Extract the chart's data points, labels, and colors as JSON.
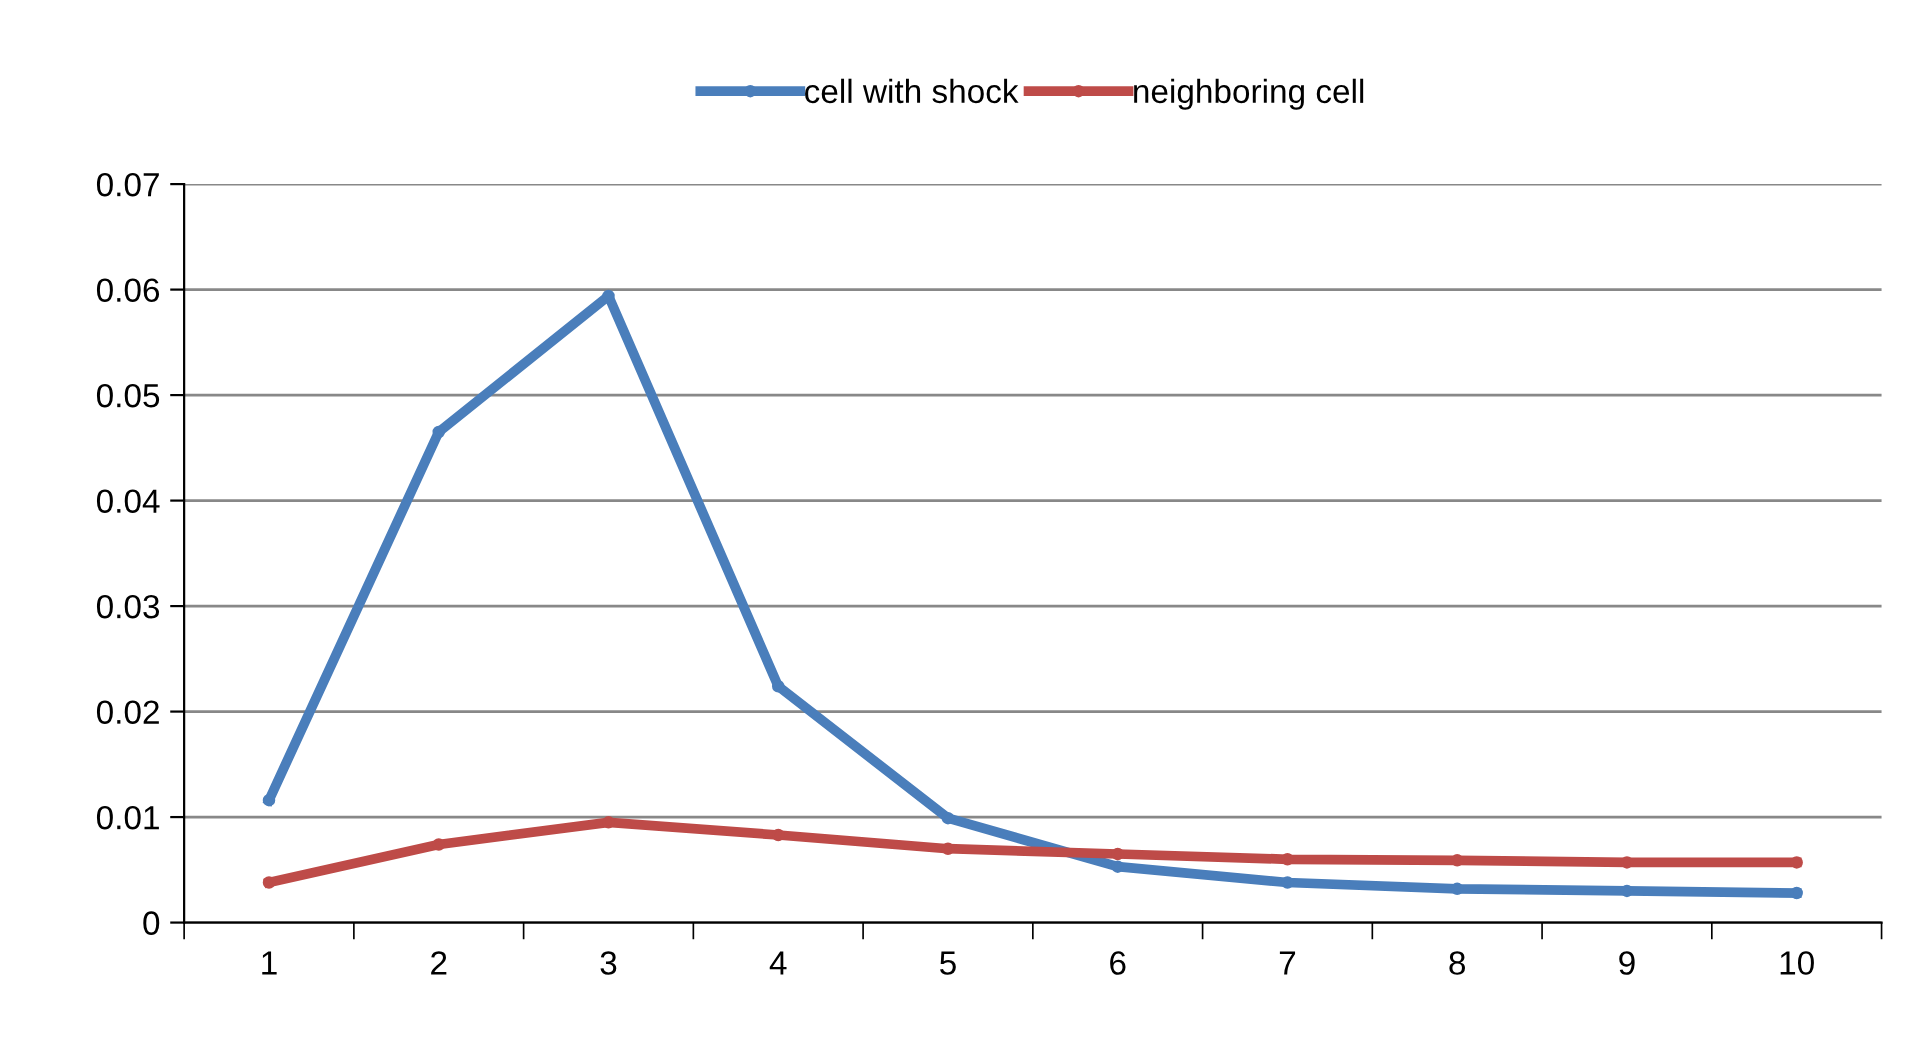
{
  "chart_data": {
    "type": "line",
    "categories": [
      "1",
      "2",
      "3",
      "4",
      "5",
      "6",
      "7",
      "8",
      "9",
      "10"
    ],
    "series": [
      {
        "name": "cell with shock",
        "color": "#4a7ebb",
        "values": [
          0.0116,
          0.0465,
          0.0594,
          0.0224,
          0.0099,
          0.0053,
          0.0038,
          0.0032,
          0.003,
          0.0028
        ]
      },
      {
        "name": "neighboring cell",
        "color": "#be4b48",
        "values": [
          0.0038,
          0.0074,
          0.0095,
          0.0083,
          0.007,
          0.0065,
          0.006,
          0.0059,
          0.0057,
          0.0057
        ]
      }
    ],
    "ylim": [
      0,
      0.07
    ],
    "yticks": [
      0,
      0.01,
      0.02,
      0.03,
      0.04,
      0.05,
      0.06,
      0.07
    ],
    "grid": "y",
    "legend": "top",
    "marker": "circle",
    "line_style": "solid"
  }
}
